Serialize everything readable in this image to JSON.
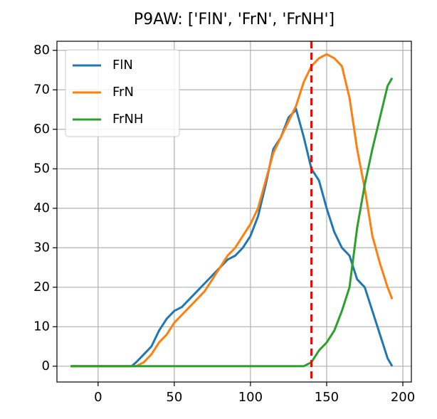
{
  "chart_data": {
    "type": "line",
    "title": "P9AW: ['FlN', 'FrN', 'FrNH']",
    "x": [
      -18,
      0,
      20,
      22,
      25,
      30,
      35,
      40,
      45,
      50,
      55,
      60,
      65,
      70,
      75,
      80,
      85,
      90,
      95,
      100,
      105,
      110,
      115,
      120,
      125,
      130,
      135,
      140,
      145,
      150,
      155,
      160,
      165,
      170,
      175,
      180,
      185,
      190,
      193
    ],
    "series": [
      {
        "name": "FlN",
        "color": "#1f77b4",
        "values": [
          0,
          0,
          0,
          0,
          1,
          3,
          5,
          9,
          12,
          14,
          15,
          17,
          19,
          21,
          23,
          25,
          27,
          28,
          30,
          33,
          38,
          46,
          55,
          58,
          63,
          65,
          58,
          50,
          47,
          40,
          34,
          30,
          28,
          22,
          20,
          14,
          8,
          2,
          0
        ]
      },
      {
        "name": "FrN",
        "color": "#ff7f0e",
        "values": [
          0,
          0,
          0,
          0,
          0,
          1,
          3,
          6,
          8,
          11,
          13,
          15,
          17,
          19,
          22,
          25,
          28,
          30,
          33,
          36,
          40,
          47,
          54,
          58,
          62,
          66,
          72,
          76,
          78,
          79,
          78,
          76,
          68,
          55,
          45,
          33,
          26,
          20,
          17
        ]
      },
      {
        "name": "FrNH",
        "color": "#2ca02c",
        "values": [
          0,
          0,
          0,
          0,
          0,
          0,
          0,
          0,
          0,
          0,
          0,
          0,
          0,
          0,
          0,
          0,
          0,
          0,
          0,
          0,
          0,
          0,
          0,
          0,
          0,
          0,
          0,
          1,
          4,
          6,
          9,
          14,
          20,
          35,
          46,
          55,
          63,
          71,
          73
        ]
      }
    ],
    "xlim": [
      -27,
      205.6
    ],
    "xticks": [
      0,
      50,
      100,
      150,
      200
    ],
    "ylim": [
      -4,
      82.3
    ],
    "yticks": [
      0,
      10,
      20,
      30,
      40,
      50,
      60,
      70,
      80
    ],
    "vline": {
      "x": 140,
      "color": "#ff0000"
    },
    "grid": true,
    "legend": "upper left"
  }
}
